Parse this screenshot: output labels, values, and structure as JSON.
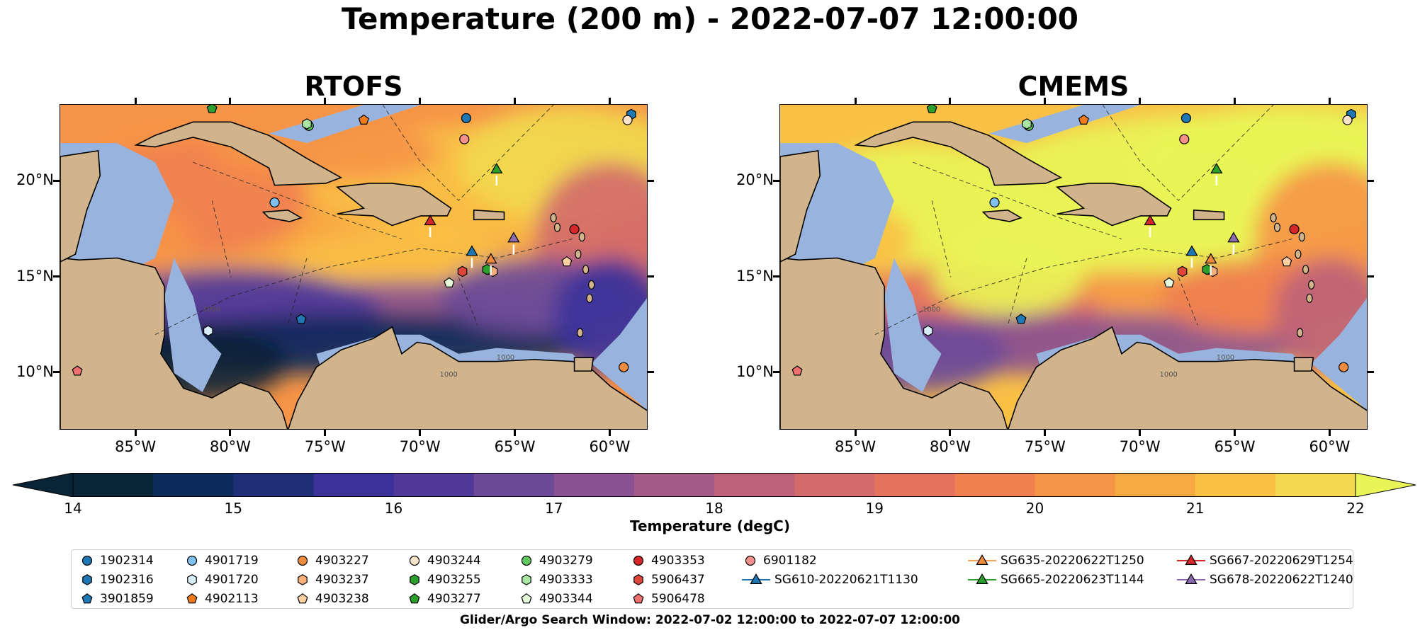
{
  "title": "Temperature (200 m) - 2022-07-07 12:00:00",
  "footer": "Glider/Argo Search Window: 2022-07-02 12:00:00 to 2022-07-07 12:00:00",
  "colors": {
    "land": "#d2b48c",
    "shelf_water": "#98b4de",
    "colormap": [
      "#092436",
      "#0d2b5a",
      "#1e2f78",
      "#3a329a",
      "#4f3a9a",
      "#6c4a98",
      "#8a5291",
      "#a35a86",
      "#bd6279",
      "#d36a6c",
      "#e4735e",
      "#f08050",
      "#f69447",
      "#f8a944",
      "#f9c046",
      "#f2d94e",
      "#e9f556"
    ]
  },
  "chart_data": [
    {
      "type": "heatmap",
      "panel": "RTOFS",
      "title": "RTOFS",
      "xlim": [
        -89,
        -58
      ],
      "ylim": [
        7,
        24
      ],
      "xticks": [
        "85°W",
        "80°W",
        "75°W",
        "70°W",
        "65°W",
        "60°W"
      ],
      "yticks": [
        "10°N",
        "15°N",
        "20°N"
      ],
      "field_summary": "warm (19-21) north of 14N, cold (14-16) band along northern South America coast"
    },
    {
      "type": "heatmap",
      "panel": "CMEMS",
      "title": "CMEMS",
      "xlim": [
        -89,
        -58
      ],
      "ylim": [
        7,
        24
      ],
      "xticks": [
        "85°W",
        "80°W",
        "75°W",
        "70°W",
        "65°W",
        "60°W"
      ],
      "yticks": [
        "10°N",
        "15°N",
        "20°N"
      ],
      "field_summary": "very warm (20-22) across most of Caribbean, cooler (16-18) near Venezuela coast"
    }
  ],
  "colorbar": {
    "label": "Temperature (degC)",
    "min": 14,
    "max": 22,
    "step": 0.5,
    "ticks": [
      "14",
      "15",
      "16",
      "17",
      "18",
      "19",
      "20",
      "21",
      "22"
    ],
    "extend": "both"
  },
  "markers": [
    {
      "id": "1902314",
      "lon": -67.6,
      "lat": 23.3,
      "shape": "circle",
      "color": "#1f77b4"
    },
    {
      "id": "1902316",
      "lon": -58.9,
      "lat": 23.5,
      "shape": "hexagon",
      "color": "#1f77b4"
    },
    {
      "id": "3901859",
      "lon": -76.3,
      "lat": 12.8,
      "shape": "pentagon",
      "color": "#1f77b4"
    },
    {
      "id": "4901719",
      "lon": -77.7,
      "lat": 18.9,
      "shape": "circle",
      "color": "#7ec0ee"
    },
    {
      "id": "4901720",
      "lon": -81.2,
      "lat": 12.2,
      "shape": "hexagon",
      "color": "#d6ecf8"
    },
    {
      "id": "4902113",
      "lon": -73.0,
      "lat": 23.2,
      "shape": "pentagon",
      "color": "#f07b1b"
    },
    {
      "id": "4903227",
      "lon": -59.3,
      "lat": 10.3,
      "shape": "circle",
      "color": "#f08a3c"
    },
    {
      "id": "4903237",
      "lon": -66.2,
      "lat": 15.3,
      "shape": "hexagon",
      "color": "#fbb07a"
    },
    {
      "id": "4903238",
      "lon": -62.3,
      "lat": 15.8,
      "shape": "pentagon",
      "color": "#fdd0a2"
    },
    {
      "id": "4903244",
      "lon": -59.1,
      "lat": 23.2,
      "shape": "circle",
      "color": "#fde3c8"
    },
    {
      "id": "4903255",
      "lon": -66.5,
      "lat": 15.4,
      "shape": "hexagon",
      "color": "#2ca02c"
    },
    {
      "id": "4903277",
      "lon": -81.0,
      "lat": 23.8,
      "shape": "pentagon",
      "color": "#2ca02c"
    },
    {
      "id": "4903279",
      "lon": -75.9,
      "lat": 22.9,
      "shape": "circle",
      "color": "#5fc95f"
    },
    {
      "id": "4903333",
      "lon": -76.0,
      "lat": 23.0,
      "shape": "hexagon",
      "color": "#a8e6a1"
    },
    {
      "id": "4903344",
      "lon": -68.5,
      "lat": 14.7,
      "shape": "pentagon",
      "color": "#e6fbd9"
    },
    {
      "id": "4903353",
      "lon": -61.9,
      "lat": 17.5,
      "shape": "circle",
      "color": "#d62728"
    },
    {
      "id": "5906437",
      "lon": -67.8,
      "lat": 15.3,
      "shape": "hexagon",
      "color": "#e0453a"
    },
    {
      "id": "5906478",
      "lon": -88.1,
      "lat": 10.1,
      "shape": "pentagon",
      "color": "#f07070"
    },
    {
      "id": "6901182",
      "lon": -67.7,
      "lat": 22.2,
      "shape": "circle",
      "color": "#f5908a"
    }
  ],
  "gliders": [
    {
      "id": "SG610-20220621T1130",
      "lon": -67.3,
      "lat": 16.3,
      "color": "#1f77b4",
      "line": "#1f77b4"
    },
    {
      "id": "SG635-20220622T1250",
      "lon": -66.3,
      "lat": 15.9,
      "color": "#f08a3c",
      "line": "#f5a05a"
    },
    {
      "id": "SG665-20220623T1144",
      "lon": -66.0,
      "lat": 20.6,
      "color": "#2ca02c",
      "line": "#2ca02c"
    },
    {
      "id": "SG667-20220629T1254",
      "lon": -69.5,
      "lat": 17.9,
      "color": "#d62728",
      "line": "#d62728"
    },
    {
      "id": "SG678-20220622T1240",
      "lon": -65.1,
      "lat": 17.0,
      "color": "#8c6bb1",
      "line": "#8c6bb1"
    }
  ],
  "legend_order": [
    "1902314",
    "1902316",
    "3901859",
    "4901719",
    "4901720",
    "4902113",
    "4903227",
    "4903237",
    "4903238",
    "4903244",
    "4903255",
    "4903277",
    "4903279",
    "4903333",
    "4903344",
    "4903353",
    "5906437",
    "5906478",
    "6901182",
    "SG610-20220621T1130",
    "SG635-20220622T1250",
    "SG665-20220623T1144",
    "SG667-20220629T1254",
    "SG678-20220622T1240"
  ],
  "contour_labels": [
    "1000",
    "1000",
    "1000"
  ]
}
